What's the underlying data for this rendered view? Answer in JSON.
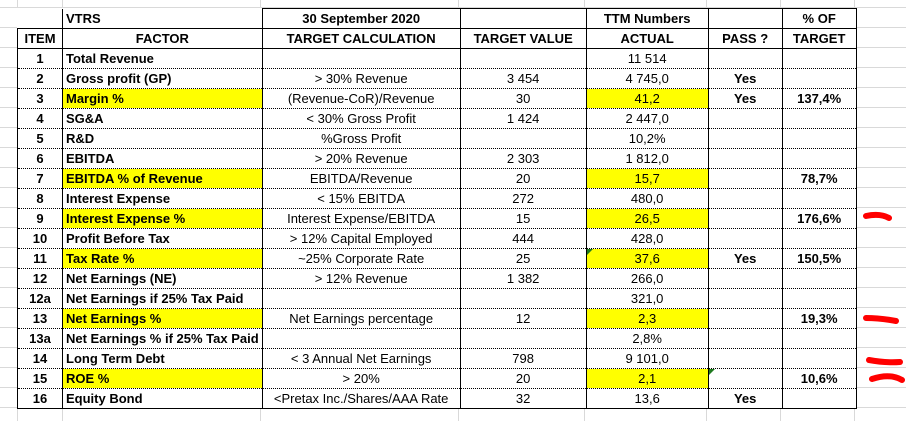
{
  "sheet": {
    "header_row1": {
      "ticker": "VTRS",
      "date": "30 September 2020",
      "ttm_label": "TTM Numbers",
      "pct_label_line1": "% OF"
    },
    "header_row2": {
      "item": "ITEM",
      "factor": "FACTOR",
      "target_calculation": "TARGET CALCULATION",
      "target_value": "TARGET VALUE",
      "actual": "ACTUAL",
      "pass": "PASS ?",
      "pct_label_line2": "TARGET"
    },
    "rows": [
      {
        "item": "1",
        "factor": "Total Revenue",
        "calc": "",
        "target": "",
        "actual": "11 514",
        "pass": "",
        "pct": ""
      },
      {
        "item": "2",
        "factor": "Gross profit (GP)",
        "calc": "> 30% Revenue",
        "target": "3 454",
        "actual": "4 745,0",
        "pass": "Yes",
        "pct": ""
      },
      {
        "item": "3",
        "factor": "Margin %",
        "calc": "(Revenue-CoR)/Revenue",
        "target": "30",
        "actual": "41,2",
        "pass": "Yes",
        "pct": "137,4%"
      },
      {
        "item": "4",
        "factor": "SG&A",
        "calc": "< 30% Gross Profit",
        "target": "1 424",
        "actual": "2 447,0",
        "pass": "",
        "pct": ""
      },
      {
        "item": "5",
        "factor": "R&D",
        "calc": "%Gross Profit",
        "target": "",
        "actual": "10,2%",
        "pass": "",
        "pct": ""
      },
      {
        "item": "6",
        "factor": "EBITDA",
        "calc": "> 20% Revenue",
        "target": "2 303",
        "actual": "1 812,0",
        "pass": "",
        "pct": ""
      },
      {
        "item": "7",
        "factor": "EBITDA % of Revenue",
        "calc": "EBITDA/Revenue",
        "target": "20",
        "actual": "15,7",
        "pass": "",
        "pct": "78,7%"
      },
      {
        "item": "8",
        "factor": "Interest Expense",
        "calc": "< 15% EBITDA",
        "target": "272",
        "actual": "480,0",
        "pass": "",
        "pct": ""
      },
      {
        "item": "9",
        "factor": "Interest Expense %",
        "calc": "Interest Expense/EBITDA",
        "target": "15",
        "actual": "26,5",
        "pass": "",
        "pct": "176,6%"
      },
      {
        "item": "10",
        "factor": "Profit Before Tax",
        "calc": "> 12% Capital Employed",
        "target": "444",
        "actual": "428,0",
        "pass": "",
        "pct": ""
      },
      {
        "item": "11",
        "factor": "Tax Rate %",
        "calc": "~25% Corporate Rate",
        "target": "25",
        "actual": "37,6",
        "pass": "Yes",
        "pct": "150,5%"
      },
      {
        "item": "12",
        "factor": "Net Earnings (NE)",
        "calc": "> 12% Revenue",
        "target": "1 382",
        "actual": "266,0",
        "pass": "",
        "pct": ""
      },
      {
        "item": "12a",
        "factor": "Net Earnings if 25% Tax Paid",
        "calc": "",
        "target": "",
        "actual": "321,0",
        "pass": "",
        "pct": ""
      },
      {
        "item": "13",
        "factor": "Net Earnings %",
        "calc": "Net Earnings percentage",
        "target": "12",
        "actual": "2,3",
        "pass": "",
        "pct": "19,3%"
      },
      {
        "item": "13a",
        "factor": "Net Earnings % if 25% Tax Paid",
        "calc": "",
        "target": "",
        "actual": "2,8%",
        "pass": "",
        "pct": ""
      },
      {
        "item": "14",
        "factor": "Long Term Debt",
        "calc": "< 3 Annual Net Earnings",
        "target": "798",
        "actual": "9 101,0",
        "pass": "",
        "pct": ""
      },
      {
        "item": "15",
        "factor": "ROE %",
        "calc": "> 20%",
        "target": "20",
        "actual": "2,1",
        "pass": "",
        "pct": "10,6%"
      },
      {
        "item": "16",
        "factor": "Equity Bond",
        "calc": "<Pretax Inc./Shares/AAA Rate",
        "target": "32",
        "actual": "13,6",
        "pass": "Yes",
        "pct": ""
      }
    ]
  },
  "colors": {
    "highlight": "#ffff00",
    "annotation_red": "#ff0000",
    "error_indicator": "#1f7a1f"
  }
}
